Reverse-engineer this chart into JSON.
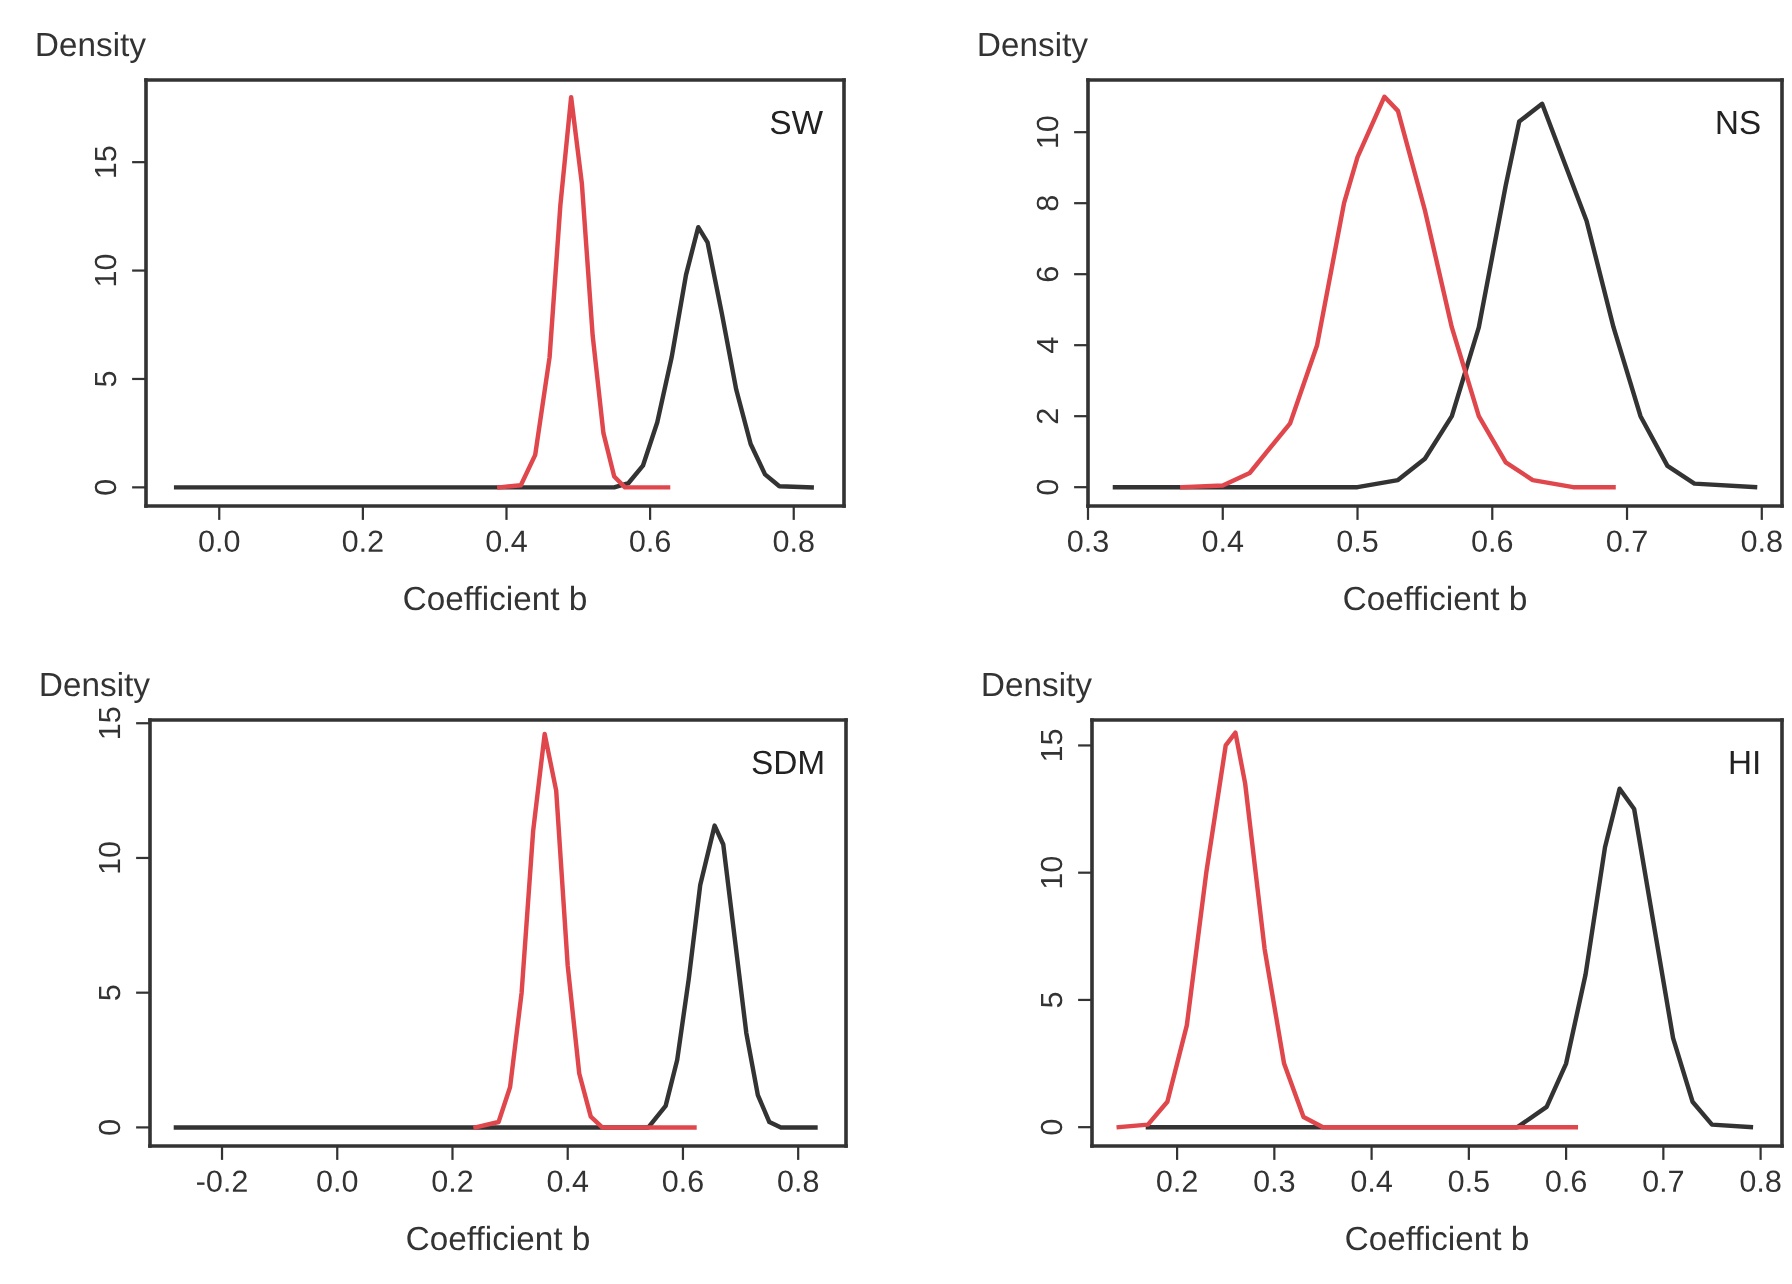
{
  "chart_data": [
    {
      "type": "line",
      "xlabel": "Coefficient b",
      "ylabel": "Density",
      "annotations": [
        "SW"
      ],
      "xlim": [
        -0.102,
        0.87
      ],
      "ylim": [
        -0.86,
        18.79
      ],
      "xticks": [
        {
          "value": 0,
          "label": "0.0"
        },
        0.2,
        0.4,
        0.6,
        0.8
      ],
      "yticks": [
        0,
        5,
        10,
        15
      ],
      "series": [
        {
          "color": "#333333",
          "x": [
            -0.06,
            0.55,
            0.57,
            0.59,
            0.61,
            0.63,
            0.65,
            0.667,
            0.68,
            0.7,
            0.72,
            0.74,
            0.76,
            0.78,
            0.825
          ],
          "values": [
            0,
            0,
            0.2,
            1,
            3,
            6,
            9.8,
            12,
            11.3,
            8,
            4.5,
            2,
            0.6,
            0.05,
            0
          ]
        },
        {
          "color": "#e0474c",
          "x": [
            0.39,
            0.42,
            0.44,
            0.46,
            0.475,
            0.49,
            0.505,
            0.52,
            0.535,
            0.55,
            0.565,
            0.625
          ],
          "values": [
            0,
            0.1,
            1.5,
            6,
            13,
            18,
            14,
            7,
            2.5,
            0.5,
            0,
            0
          ]
        }
      ]
    },
    {
      "type": "line",
      "xlabel": "Coefficient b",
      "ylabel": "Density",
      "annotations": [
        "NS"
      ],
      "xlim": [
        0.3,
        0.815
      ],
      "ylim": [
        -0.53,
        11.47
      ],
      "xticks": [
        0.3,
        0.4,
        0.5,
        0.6,
        0.7,
        0.8
      ],
      "yticks": [
        0,
        2,
        4,
        6,
        8,
        10
      ],
      "series": [
        {
          "color": "#333333",
          "x": [
            0.32,
            0.5,
            0.53,
            0.55,
            0.57,
            0.59,
            0.61,
            0.62,
            0.637,
            0.65,
            0.67,
            0.69,
            0.71,
            0.73,
            0.75,
            0.795
          ],
          "values": [
            0,
            0,
            0.2,
            0.8,
            2,
            4.5,
            8.5,
            10.3,
            10.8,
            9.5,
            7.5,
            4.5,
            2,
            0.6,
            0.1,
            0
          ]
        },
        {
          "color": "#e0474c",
          "x": [
            0.37,
            0.4,
            0.42,
            0.45,
            0.47,
            0.49,
            0.5,
            0.52,
            0.53,
            0.55,
            0.57,
            0.59,
            0.61,
            0.63,
            0.66,
            0.69
          ],
          "values": [
            0,
            0.05,
            0.4,
            1.8,
            4,
            8,
            9.3,
            11,
            10.6,
            7.8,
            4.5,
            2,
            0.7,
            0.2,
            0,
            0
          ]
        }
      ]
    },
    {
      "type": "line",
      "xlabel": "Coefficient b",
      "ylabel": "Density",
      "annotations": [
        "SDM"
      ],
      "xlim": [
        -0.325,
        0.883
      ],
      "ylim": [
        -0.69,
        15.12
      ],
      "xticks": [
        -0.2,
        {
          "value": 0,
          "label": "0.0"
        },
        0.2,
        0.4,
        0.6,
        0.8
      ],
      "yticks": [
        0,
        5,
        10,
        15
      ],
      "series": [
        {
          "color": "#333333",
          "x": [
            -0.28,
            0.54,
            0.57,
            0.59,
            0.61,
            0.63,
            0.655,
            0.67,
            0.69,
            0.71,
            0.73,
            0.75,
            0.77,
            0.83
          ],
          "values": [
            0,
            0,
            0.8,
            2.5,
            5.5,
            9,
            11.2,
            10.5,
            7,
            3.5,
            1.2,
            0.2,
            0,
            0
          ]
        },
        {
          "color": "#e0474c",
          "x": [
            0.24,
            0.28,
            0.3,
            0.32,
            0.34,
            0.36,
            0.38,
            0.4,
            0.42,
            0.44,
            0.46,
            0.62
          ],
          "values": [
            0,
            0.2,
            1.5,
            5,
            11,
            14.6,
            12.5,
            6,
            2,
            0.4,
            0,
            0
          ]
        }
      ]
    },
    {
      "type": "line",
      "xlabel": "Coefficient b",
      "ylabel": "Density",
      "annotations": [
        "HI"
      ],
      "xlim": [
        0.1125,
        0.822
      ],
      "ylim": [
        -0.74,
        16.0
      ],
      "xticks": [
        0.2,
        0.3,
        0.4,
        0.5,
        0.6,
        0.7,
        0.8
      ],
      "yticks": [
        0,
        5,
        10,
        15
      ],
      "series": [
        {
          "color": "#333333",
          "x": [
            0.17,
            0.55,
            0.58,
            0.6,
            0.62,
            0.64,
            0.655,
            0.67,
            0.69,
            0.71,
            0.73,
            0.75,
            0.79
          ],
          "values": [
            0,
            0,
            0.8,
            2.5,
            6,
            11,
            13.3,
            12.5,
            8,
            3.5,
            1,
            0.1,
            0
          ]
        },
        {
          "color": "#e0474c",
          "x": [
            0.14,
            0.17,
            0.19,
            0.21,
            0.23,
            0.25,
            0.26,
            0.27,
            0.29,
            0.31,
            0.33,
            0.35,
            0.61
          ],
          "values": [
            0,
            0.1,
            1,
            4,
            10,
            15,
            15.5,
            13.5,
            7,
            2.5,
            0.4,
            0,
            0
          ]
        }
      ]
    }
  ]
}
